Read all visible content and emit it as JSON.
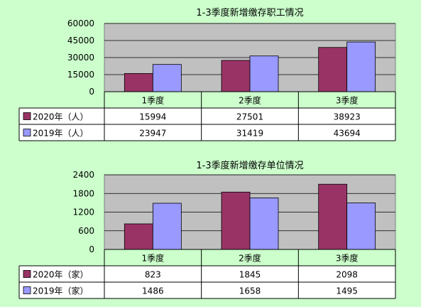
{
  "colors": {
    "background": "#ccffcc",
    "plot_area": "#c0c0c0",
    "series_2020": "#993366",
    "series_2019": "#9999ff",
    "table_bg": "#ffffff"
  },
  "chart_data": [
    {
      "type": "bar",
      "title": "1-3季度新增缴存职工情况",
      "categories": [
        "1季度",
        "2季度",
        "3季度"
      ],
      "series": [
        {
          "name": "2020年（人）",
          "values": [
            15994,
            27501,
            38923
          ]
        },
        {
          "name": "2019年（人）",
          "values": [
            23947,
            31419,
            43694
          ]
        }
      ],
      "ylim": [
        0,
        60000
      ],
      "yticks": [
        "0",
        "15000",
        "30000",
        "45000",
        "60000"
      ],
      "ytick_values": [
        0,
        15000,
        30000,
        45000,
        60000
      ],
      "grid": true,
      "data_table": true
    },
    {
      "type": "bar",
      "title": "1-3季度新增缴存单位情况",
      "categories": [
        "1季度",
        "2季度",
        "3季度"
      ],
      "series": [
        {
          "name": "2020年（家）",
          "values": [
            823,
            1845,
            2098
          ]
        },
        {
          "name": "2019年（家）",
          "values": [
            1486,
            1658,
            1495
          ]
        }
      ],
      "ylim": [
        0,
        2400
      ],
      "yticks": [
        "0",
        "600",
        "1200",
        "1800",
        "2400"
      ],
      "ytick_values": [
        0,
        600,
        1200,
        1800,
        2400
      ],
      "grid": true,
      "data_table": true
    }
  ]
}
